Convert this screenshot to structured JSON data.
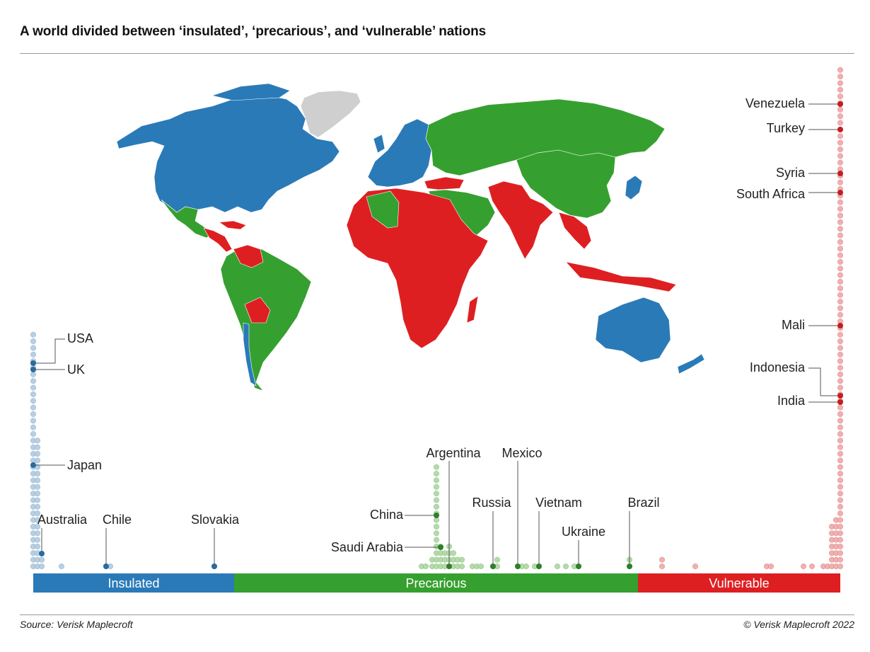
{
  "title": "A world divided between ‘insulated’, ‘precarious’, and ‘vulnerable’ nations",
  "source": "Source: Verisk Maplecroft",
  "copyright": "© Verisk Maplecroft 2022",
  "colors": {
    "insulated": "#2a7ab8",
    "precarious": "#35a02f",
    "vulnerable": "#de1f22",
    "no_data": "#cfcfcf",
    "insulated_dot": "#b9cfe1",
    "precarious_dot": "#b3dba9",
    "vulnerable_dot": "#f0b0b0"
  },
  "categories": [
    {
      "key": "insulated",
      "label": "Insulated"
    },
    {
      "key": "precarious",
      "label": "Precarious"
    },
    {
      "key": "vulnerable",
      "label": "Vulnerable"
    }
  ],
  "map_regions": [
    {
      "region": "North America",
      "category": "insulated"
    },
    {
      "region": "Greenland",
      "category": "no_data"
    },
    {
      "region": "Mexico",
      "category": "precarious"
    },
    {
      "region": "Central America",
      "category": "vulnerable"
    },
    {
      "region": "South America",
      "category": "precarious"
    },
    {
      "region": "Venezuela",
      "category": "vulnerable"
    },
    {
      "region": "Bolivia",
      "category": "vulnerable"
    },
    {
      "region": "Chile",
      "category": "insulated"
    },
    {
      "region": "Western Europe",
      "category": "insulated"
    },
    {
      "region": "Russia",
      "category": "precarious"
    },
    {
      "region": "China",
      "category": "precarious"
    },
    {
      "region": "Japan",
      "category": "insulated"
    },
    {
      "region": "Africa",
      "category": "vulnerable"
    },
    {
      "region": "Algeria",
      "category": "precarious"
    },
    {
      "region": "Middle East",
      "category": "precarious"
    },
    {
      "region": "Turkey",
      "category": "vulnerable"
    },
    {
      "region": "South Asia",
      "category": "vulnerable"
    },
    {
      "region": "Southeast Asia",
      "category": "vulnerable"
    },
    {
      "region": "Australia",
      "category": "insulated"
    },
    {
      "region": "New Zealand",
      "category": "insulated"
    }
  ],
  "highlighted_countries": [
    {
      "name": "USA",
      "category": "insulated"
    },
    {
      "name": "UK",
      "category": "insulated"
    },
    {
      "name": "Japan",
      "category": "insulated"
    },
    {
      "name": "Australia",
      "category": "insulated"
    },
    {
      "name": "Chile",
      "category": "insulated"
    },
    {
      "name": "Slovakia",
      "category": "insulated"
    },
    {
      "name": "Argentina",
      "category": "precarious"
    },
    {
      "name": "Mexico",
      "category": "precarious"
    },
    {
      "name": "China",
      "category": "precarious"
    },
    {
      "name": "Russia",
      "category": "precarious"
    },
    {
      "name": "Vietnam",
      "category": "precarious"
    },
    {
      "name": "Brazil",
      "category": "precarious"
    },
    {
      "name": "Saudi Arabia",
      "category": "precarious"
    },
    {
      "name": "Ukraine",
      "category": "precarious"
    },
    {
      "name": "Venezuela",
      "category": "vulnerable"
    },
    {
      "name": "Turkey",
      "category": "vulnerable"
    },
    {
      "name": "Syria",
      "category": "vulnerable"
    },
    {
      "name": "South Africa",
      "category": "vulnerable"
    },
    {
      "name": "Mali",
      "category": "vulnerable"
    },
    {
      "name": "Indonesia",
      "category": "vulnerable"
    },
    {
      "name": "India",
      "category": "vulnerable"
    }
  ]
}
